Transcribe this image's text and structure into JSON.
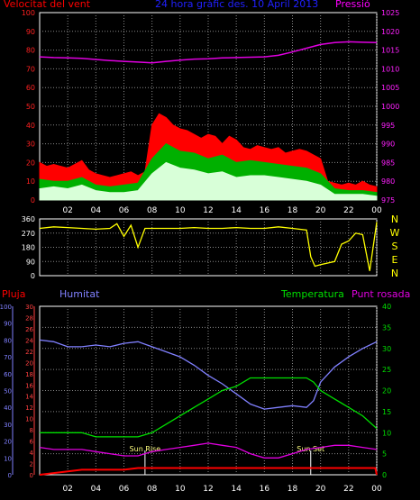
{
  "chart_data": [
    {
      "type": "line",
      "title": "24 hora gràfic des. 10 April 2013",
      "left_label": "Velocitat del vent",
      "right_label": "Pressió",
      "ylim": [
        0,
        100
      ],
      "y_ticks": [
        "0",
        "10",
        "20",
        "30",
        "40",
        "50",
        "60",
        "70",
        "80",
        "90",
        "100"
      ],
      "y2lim": [
        975,
        1025
      ],
      "y2_ticks": [
        "975",
        "980",
        "985",
        "990",
        "995",
        "1000",
        "1005",
        "1010",
        "1015",
        "1020",
        "1025"
      ],
      "x_ticks": [
        "02",
        "04",
        "06",
        "08",
        "10",
        "12",
        "14",
        "16",
        "18",
        "20",
        "22",
        "00"
      ],
      "colors": {
        "gust": "#ff0000",
        "average": "#00b000",
        "speed": "#d8ffd8",
        "pressure": "#e000e0"
      },
      "series": [
        {
          "id": "gust",
          "x": [
            0,
            0.5,
            1,
            1.5,
            2,
            2.5,
            3,
            3.5,
            4,
            4.5,
            5,
            5.5,
            6,
            6.5,
            7,
            7.5,
            8,
            8.5,
            9,
            9.5,
            10,
            10.5,
            11,
            11.5,
            12,
            12.5,
            13,
            13.5,
            14,
            14.5,
            15,
            15.5,
            16,
            16.5,
            17,
            17.5,
            18,
            18.5,
            19,
            19.5,
            20,
            20.5,
            21,
            21.5,
            22,
            22.5,
            23,
            23.5,
            24
          ],
          "values": [
            20,
            18,
            19,
            18,
            17,
            19,
            21,
            16,
            14,
            13,
            12,
            13,
            14,
            15,
            13,
            15,
            40,
            46,
            44,
            40,
            38,
            37,
            35,
            33,
            35,
            34,
            30,
            34,
            32,
            28,
            27,
            29,
            28,
            27,
            28,
            25,
            26,
            27,
            26,
            24,
            22,
            10,
            9,
            8,
            9,
            8,
            10,
            8,
            7
          ]
        },
        {
          "id": "average",
          "x": [
            0,
            1,
            2,
            3,
            4,
            5,
            6,
            7,
            8,
            9,
            10,
            11,
            12,
            13,
            14,
            15,
            16,
            17,
            18,
            19,
            20,
            21,
            22,
            23,
            24
          ],
          "values": [
            11,
            10,
            10,
            12,
            8,
            7,
            8,
            9,
            22,
            30,
            26,
            25,
            22,
            24,
            20,
            21,
            20,
            19,
            18,
            17,
            14,
            6,
            5,
            5,
            4
          ]
        },
        {
          "id": "speed",
          "x": [
            0,
            1,
            2,
            3,
            4,
            5,
            6,
            7,
            8,
            9,
            10,
            11,
            12,
            13,
            14,
            15,
            16,
            17,
            18,
            19,
            20,
            21,
            22,
            23,
            24
          ],
          "values": [
            6,
            7,
            6,
            8,
            5,
            4,
            4,
            5,
            14,
            20,
            17,
            16,
            14,
            15,
            12,
            13,
            13,
            12,
            11,
            10,
            8,
            3,
            3,
            3,
            2
          ]
        },
        {
          "id": "pressure",
          "axis": "right",
          "x": [
            0,
            1,
            2,
            3,
            4,
            5,
            6,
            7,
            8,
            9,
            10,
            11,
            12,
            13,
            14,
            15,
            16,
            17,
            18,
            19,
            20,
            21,
            22,
            23,
            24
          ],
          "values": [
            1013.2,
            1013.0,
            1012.9,
            1012.8,
            1012.5,
            1012.2,
            1012.0,
            1011.8,
            1011.6,
            1012.0,
            1012.3,
            1012.6,
            1012.7,
            1012.9,
            1013.0,
            1013.1,
            1013.2,
            1013.6,
            1014.5,
            1015.5,
            1016.5,
            1017.0,
            1017.2,
            1017.1,
            1017.0
          ]
        }
      ]
    },
    {
      "type": "line",
      "ylim": [
        0,
        360
      ],
      "y_ticks": [
        "0",
        "90",
        "180",
        "270",
        "360"
      ],
      "right_labels": [
        "N",
        "W",
        "S",
        "E",
        "N"
      ],
      "color": "#ffff00",
      "series": [
        {
          "id": "wind_direction",
          "x": [
            0,
            1,
            2,
            3,
            4,
            5,
            5.5,
            6,
            6.5,
            7,
            7.5,
            8,
            9,
            10,
            11,
            12,
            13,
            14,
            15,
            16,
            17,
            18,
            19,
            19.3,
            19.6,
            20,
            21,
            21.5,
            22,
            22.5,
            23,
            23.5,
            24
          ],
          "values": [
            300,
            310,
            305,
            300,
            295,
            300,
            330,
            250,
            320,
            180,
            300,
            300,
            300,
            300,
            305,
            300,
            300,
            305,
            300,
            300,
            310,
            300,
            290,
            120,
            60,
            70,
            90,
            200,
            220,
            270,
            260,
            30,
            340
          ]
        }
      ]
    },
    {
      "type": "line",
      "left_label": "Pluja",
      "left2_label": "Humitat",
      "right_label1": "Temperatura",
      "right_label2": "Punt rosada",
      "rain_ylim": [
        0,
        100
      ],
      "rain_ticks": [
        "0",
        "10",
        "20",
        "30",
        "40",
        "50",
        "60",
        "70",
        "80",
        "90",
        "100"
      ],
      "hum_ylim": [
        0,
        30
      ],
      "hum_ticks": [
        "0",
        "2",
        "4",
        "6",
        "8",
        "10",
        "12",
        "14",
        "16",
        "18",
        "20",
        "22",
        "24",
        "26",
        "28",
        "30"
      ],
      "temp_ylim": [
        0,
        40
      ],
      "temp_ticks": [
        "0",
        "5",
        "10",
        "15",
        "20",
        "25",
        "30",
        "35",
        "40"
      ],
      "annotations": [
        "Sun Rise",
        "Sun Set"
      ],
      "colors": {
        "rain": "#ff0000",
        "humidity": "#8080ff",
        "temperature": "#00e000",
        "dewpoint": "#e000e0"
      },
      "series": [
        {
          "id": "humidity",
          "x": [
            0,
            1,
            2,
            3,
            4,
            5,
            6,
            7,
            8,
            9,
            10,
            11,
            12,
            13,
            14,
            15,
            16,
            17,
            18,
            19,
            19.5,
            20,
            21,
            22,
            23,
            24
          ],
          "values": [
            80,
            79,
            76,
            76,
            77,
            76,
            78,
            79,
            76,
            73,
            70,
            65,
            59,
            54,
            48,
            42,
            39,
            40,
            41,
            40,
            44,
            55,
            64,
            70,
            75,
            79
          ]
        },
        {
          "id": "temperature",
          "x": [
            0,
            1,
            2,
            3,
            4,
            5,
            6,
            7,
            8,
            9,
            10,
            11,
            12,
            13,
            14,
            15,
            16,
            17,
            18,
            19,
            19.5,
            20,
            21,
            22,
            23,
            24
          ],
          "values": [
            10,
            10,
            10,
            10,
            9,
            9,
            9,
            9,
            10,
            12,
            14,
            16,
            18,
            20,
            21,
            23,
            23,
            23,
            23,
            23,
            22,
            20,
            18,
            16,
            14,
            11
          ]
        },
        {
          "id": "dewpoint",
          "x": [
            0,
            1,
            2,
            3,
            4,
            5,
            6,
            7,
            8,
            9,
            10,
            11,
            12,
            13,
            14,
            15,
            16,
            17,
            18,
            19,
            20,
            21,
            22,
            23,
            24
          ],
          "values": [
            6.5,
            6,
            6,
            6,
            5.5,
            5,
            4.5,
            4.5,
            5.5,
            6,
            6.5,
            7,
            7.5,
            7,
            6.5,
            5,
            4,
            4,
            5,
            6,
            6.5,
            7,
            7,
            6.5,
            6
          ]
        },
        {
          "id": "rain",
          "x": [
            0,
            1,
            2,
            3,
            4,
            5,
            6,
            7,
            8,
            9,
            10,
            11,
            12,
            13,
            14,
            15,
            16,
            17,
            18,
            19,
            20,
            21,
            22,
            23,
            23.9,
            24
          ],
          "values": [
            0,
            1,
            2,
            3,
            3,
            3,
            3,
            4,
            4,
            4,
            4,
            4,
            4,
            4,
            4,
            4,
            4,
            4,
            4,
            4,
            4,
            4,
            4,
            4,
            4,
            0
          ]
        }
      ]
    }
  ]
}
